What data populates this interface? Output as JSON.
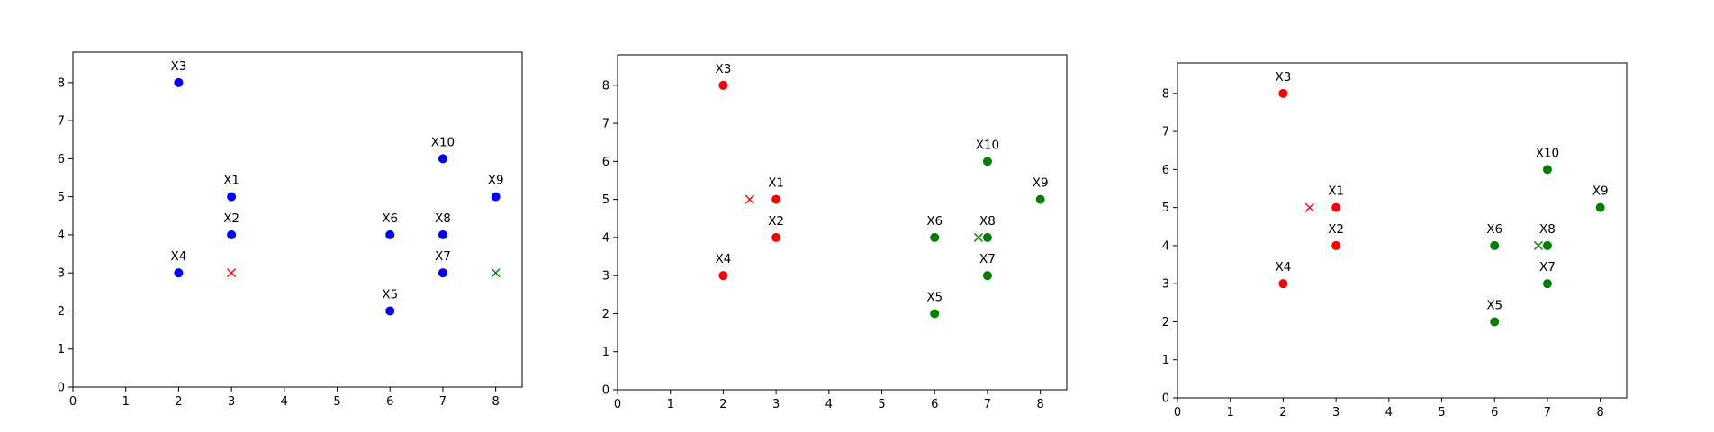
{
  "chart_data": [
    {
      "type": "scatter",
      "title": "",
      "xlabel": "",
      "ylabel": "",
      "xlim": [
        0,
        8.5
      ],
      "ylim": [
        0,
        8.8
      ],
      "xticks": [
        "0",
        "1",
        "2",
        "3",
        "4",
        "5",
        "6",
        "7",
        "8"
      ],
      "yticks": [
        "0",
        "1",
        "2",
        "3",
        "4",
        "5",
        "6",
        "7",
        "8"
      ],
      "grid": false,
      "points": [
        {
          "label": "X1",
          "x": 3,
          "y": 5,
          "color": "#0000ff"
        },
        {
          "label": "X2",
          "x": 3,
          "y": 4,
          "color": "#0000ff"
        },
        {
          "label": "X3",
          "x": 2,
          "y": 8,
          "color": "#0000ff"
        },
        {
          "label": "X4",
          "x": 2,
          "y": 3,
          "color": "#0000ff"
        },
        {
          "label": "X5",
          "x": 6,
          "y": 2,
          "color": "#0000ff"
        },
        {
          "label": "X6",
          "x": 6,
          "y": 4,
          "color": "#0000ff"
        },
        {
          "label": "X7",
          "x": 7,
          "y": 3,
          "color": "#0000ff"
        },
        {
          "label": "X8",
          "x": 7,
          "y": 4,
          "color": "#0000ff"
        },
        {
          "label": "X9",
          "x": 8,
          "y": 5,
          "color": "#0000ff"
        },
        {
          "label": "X10",
          "x": 7,
          "y": 6,
          "color": "#0000ff"
        }
      ],
      "centroids": [
        {
          "x": 3,
          "y": 3,
          "color": "#ff0000"
        },
        {
          "x": 8,
          "y": 3,
          "color": "#008000"
        }
      ]
    },
    {
      "type": "scatter",
      "title": "",
      "xlabel": "",
      "ylabel": "",
      "xlim": [
        0,
        8.5
      ],
      "ylim": [
        0,
        8.8
      ],
      "xticks": [
        "0",
        "1",
        "2",
        "3",
        "4",
        "5",
        "6",
        "7",
        "8"
      ],
      "yticks": [
        "0",
        "1",
        "2",
        "3",
        "4",
        "5",
        "6",
        "7",
        "8"
      ],
      "grid": false,
      "points": [
        {
          "label": "X1",
          "x": 3,
          "y": 5,
          "color": "#ff0000"
        },
        {
          "label": "X2",
          "x": 3,
          "y": 4,
          "color": "#ff0000"
        },
        {
          "label": "X3",
          "x": 2,
          "y": 8,
          "color": "#ff0000"
        },
        {
          "label": "X4",
          "x": 2,
          "y": 3,
          "color": "#ff0000"
        },
        {
          "label": "X5",
          "x": 6,
          "y": 2,
          "color": "#008000"
        },
        {
          "label": "X6",
          "x": 6,
          "y": 4,
          "color": "#008000"
        },
        {
          "label": "X7",
          "x": 7,
          "y": 3,
          "color": "#008000"
        },
        {
          "label": "X8",
          "x": 7,
          "y": 4,
          "color": "#008000"
        },
        {
          "label": "X9",
          "x": 8,
          "y": 5,
          "color": "#008000"
        },
        {
          "label": "X10",
          "x": 7,
          "y": 6,
          "color": "#008000"
        }
      ],
      "centroids": [
        {
          "x": 2.5,
          "y": 5,
          "color": "#ff0000"
        },
        {
          "x": 6.83,
          "y": 4,
          "color": "#008000"
        }
      ]
    },
    {
      "type": "scatter",
      "title": "",
      "xlabel": "",
      "ylabel": "",
      "xlim": [
        0,
        8.5
      ],
      "ylim": [
        0,
        8.8
      ],
      "xticks": [
        "0",
        "1",
        "2",
        "3",
        "4",
        "5",
        "6",
        "7",
        "8"
      ],
      "yticks": [
        "0",
        "1",
        "2",
        "3",
        "4",
        "5",
        "6",
        "7",
        "8"
      ],
      "grid": false,
      "points": [
        {
          "label": "X1",
          "x": 3,
          "y": 5,
          "color": "#ff0000"
        },
        {
          "label": "X2",
          "x": 3,
          "y": 4,
          "color": "#ff0000"
        },
        {
          "label": "X3",
          "x": 2,
          "y": 8,
          "color": "#ff0000"
        },
        {
          "label": "X4",
          "x": 2,
          "y": 3,
          "color": "#ff0000"
        },
        {
          "label": "X5",
          "x": 6,
          "y": 2,
          "color": "#008000"
        },
        {
          "label": "X6",
          "x": 6,
          "y": 4,
          "color": "#008000"
        },
        {
          "label": "X7",
          "x": 7,
          "y": 3,
          "color": "#008000"
        },
        {
          "label": "X8",
          "x": 7,
          "y": 4,
          "color": "#008000"
        },
        {
          "label": "X9",
          "x": 8,
          "y": 5,
          "color": "#008000"
        },
        {
          "label": "X10",
          "x": 7,
          "y": 6,
          "color": "#008000"
        }
      ],
      "centroids": [
        {
          "x": 2.5,
          "y": 5,
          "color": "#ff0000"
        },
        {
          "x": 6.83,
          "y": 4,
          "color": "#008000"
        }
      ]
    }
  ]
}
